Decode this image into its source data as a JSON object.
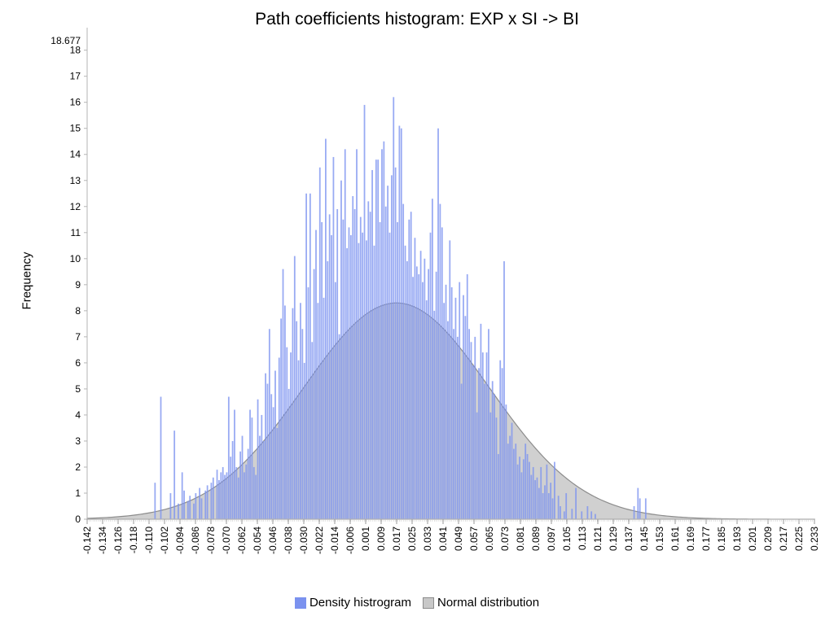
{
  "chart_data": {
    "type": "bar",
    "title": "Path coefficients histogram: EXP x SI -> BI",
    "ylabel": "Frequency",
    "xlabel": "",
    "ylim": [
      0,
      18.677
    ],
    "y_top_label": "18.677",
    "y_ticks": [
      "0",
      "1",
      "2",
      "3",
      "4",
      "5",
      "6",
      "7",
      "8",
      "9",
      "10",
      "11",
      "12",
      "13",
      "14",
      "15",
      "16",
      "17",
      "18"
    ],
    "x_ticks": [
      "-0.142",
      "-0.134",
      "-0.126",
      "-0.118",
      "-0.110",
      "-0.102",
      "-0.094",
      "-0.086",
      "-0.078",
      "-0.070",
      "-0.062",
      "-0.054",
      "-0.046",
      "-0.038",
      "-0.030",
      "-0.022",
      "-0.014",
      "-0.006",
      "0.001",
      "0.009",
      "0.017",
      "0.025",
      "0.033",
      "0.041",
      "0.049",
      "0.057",
      "0.065",
      "0.073",
      "0.081",
      "0.089",
      "0.097",
      "0.105",
      "0.113",
      "0.121",
      "0.129",
      "0.137",
      "0.145",
      "0.153",
      "0.161",
      "0.169",
      "0.177",
      "0.185",
      "0.193",
      "0.201",
      "0.209",
      "0.217",
      "0.225",
      "0.233"
    ],
    "xlim": [
      -0.142,
      0.233
    ],
    "bin_width": 0.001,
    "series": [
      {
        "name": "Density histrogram",
        "type": "bar",
        "color": "#7b92ef",
        "bins": [
          [
            -0.107,
            1.4
          ],
          [
            -0.104,
            4.7
          ],
          [
            -0.099,
            1.0
          ],
          [
            -0.097,
            3.4
          ],
          [
            -0.095,
            0.6
          ],
          [
            -0.093,
            1.8
          ],
          [
            -0.092,
            1.1
          ],
          [
            -0.09,
            0.7
          ],
          [
            -0.089,
            0.9
          ],
          [
            -0.087,
            0.6
          ],
          [
            -0.086,
            1.0
          ],
          [
            -0.084,
            1.2
          ],
          [
            -0.083,
            0.8
          ],
          [
            -0.081,
            1.1
          ],
          [
            -0.08,
            1.3
          ],
          [
            -0.078,
            1.4
          ],
          [
            -0.077,
            1.6
          ],
          [
            -0.075,
            1.9
          ],
          [
            -0.074,
            1.5
          ],
          [
            -0.073,
            1.8
          ],
          [
            -0.072,
            2.0
          ],
          [
            -0.071,
            1.7
          ],
          [
            -0.07,
            1.8
          ],
          [
            -0.069,
            4.7
          ],
          [
            -0.068,
            2.4
          ],
          [
            -0.067,
            3.0
          ],
          [
            -0.066,
            4.2
          ],
          [
            -0.065,
            2.0
          ],
          [
            -0.064,
            1.6
          ],
          [
            -0.063,
            2.6
          ],
          [
            -0.062,
            3.2
          ],
          [
            -0.061,
            1.8
          ],
          [
            -0.06,
            2.1
          ],
          [
            -0.059,
            2.7
          ],
          [
            -0.058,
            4.2
          ],
          [
            -0.057,
            3.9
          ],
          [
            -0.056,
            2.0
          ],
          [
            -0.055,
            1.7
          ],
          [
            -0.054,
            4.6
          ],
          [
            -0.053,
            3.2
          ],
          [
            -0.052,
            4.0
          ],
          [
            -0.051,
            3.0
          ],
          [
            -0.05,
            5.6
          ],
          [
            -0.049,
            5.2
          ],
          [
            -0.048,
            7.3
          ],
          [
            -0.047,
            4.8
          ],
          [
            -0.046,
            4.3
          ],
          [
            -0.045,
            5.7
          ],
          [
            -0.044,
            3.5
          ],
          [
            -0.043,
            6.2
          ],
          [
            -0.042,
            7.7
          ],
          [
            -0.041,
            9.6
          ],
          [
            -0.04,
            8.2
          ],
          [
            -0.039,
            6.6
          ],
          [
            -0.038,
            5.0
          ],
          [
            -0.037,
            6.4
          ],
          [
            -0.036,
            8.1
          ],
          [
            -0.035,
            10.1
          ],
          [
            -0.034,
            7.6
          ],
          [
            -0.033,
            6.1
          ],
          [
            -0.032,
            8.3
          ],
          [
            -0.031,
            7.3
          ],
          [
            -0.03,
            6.0
          ],
          [
            -0.029,
            12.5
          ],
          [
            -0.028,
            8.9
          ],
          [
            -0.027,
            12.5
          ],
          [
            -0.026,
            6.8
          ],
          [
            -0.025,
            9.6
          ],
          [
            -0.024,
            11.1
          ],
          [
            -0.023,
            8.3
          ],
          [
            -0.022,
            13.5
          ],
          [
            -0.021,
            11.4
          ],
          [
            -0.02,
            8.5
          ],
          [
            -0.019,
            14.6
          ],
          [
            -0.018,
            9.9
          ],
          [
            -0.017,
            11.7
          ],
          [
            -0.016,
            10.9
          ],
          [
            -0.015,
            13.9
          ],
          [
            -0.014,
            9.1
          ],
          [
            -0.013,
            11.9
          ],
          [
            -0.012,
            7.1
          ],
          [
            -0.011,
            13.0
          ],
          [
            -0.01,
            11.5
          ],
          [
            -0.009,
            14.2
          ],
          [
            -0.008,
            10.4
          ],
          [
            -0.007,
            11.2
          ],
          [
            -0.006,
            10.9
          ],
          [
            -0.005,
            12.4
          ],
          [
            -0.004,
            11.9
          ],
          [
            -0.003,
            14.2
          ],
          [
            -0.002,
            10.6
          ],
          [
            -0.001,
            11.6
          ],
          [
            0.0,
            11.0
          ],
          [
            0.001,
            15.9
          ],
          [
            0.002,
            10.7
          ],
          [
            0.003,
            12.2
          ],
          [
            0.004,
            11.8
          ],
          [
            0.005,
            13.4
          ],
          [
            0.006,
            10.5
          ],
          [
            0.007,
            13.8
          ],
          [
            0.008,
            13.8
          ],
          [
            0.009,
            11.4
          ],
          [
            0.01,
            14.2
          ],
          [
            0.011,
            14.5
          ],
          [
            0.012,
            12.0
          ],
          [
            0.013,
            12.8
          ],
          [
            0.014,
            11.0
          ],
          [
            0.015,
            13.2
          ],
          [
            0.016,
            16.2
          ],
          [
            0.017,
            13.5
          ],
          [
            0.018,
            11.4
          ],
          [
            0.019,
            15.1
          ],
          [
            0.02,
            15.0
          ],
          [
            0.021,
            12.1
          ],
          [
            0.022,
            10.5
          ],
          [
            0.023,
            9.9
          ],
          [
            0.024,
            11.5
          ],
          [
            0.025,
            11.8
          ],
          [
            0.026,
            9.3
          ],
          [
            0.027,
            10.8
          ],
          [
            0.028,
            9.7
          ],
          [
            0.029,
            9.4
          ],
          [
            0.03,
            10.3
          ],
          [
            0.031,
            9.1
          ],
          [
            0.032,
            10.0
          ],
          [
            0.033,
            8.4
          ],
          [
            0.034,
            9.6
          ],
          [
            0.035,
            11.0
          ],
          [
            0.036,
            12.3
          ],
          [
            0.037,
            8.0
          ],
          [
            0.038,
            9.5
          ],
          [
            0.039,
            15.0
          ],
          [
            0.04,
            12.1
          ],
          [
            0.041,
            11.2
          ],
          [
            0.042,
            8.3
          ],
          [
            0.043,
            9.0
          ],
          [
            0.044,
            7.6
          ],
          [
            0.045,
            10.7
          ],
          [
            0.046,
            8.9
          ],
          [
            0.047,
            7.3
          ],
          [
            0.048,
            8.5
          ],
          [
            0.049,
            7.0
          ],
          [
            0.05,
            9.1
          ],
          [
            0.051,
            5.2
          ],
          [
            0.052,
            8.6
          ],
          [
            0.053,
            7.8
          ],
          [
            0.054,
            9.4
          ],
          [
            0.055,
            7.3
          ],
          [
            0.056,
            6.8
          ],
          [
            0.057,
            5.9
          ],
          [
            0.058,
            7.0
          ],
          [
            0.059,
            4.1
          ],
          [
            0.06,
            5.8
          ],
          [
            0.061,
            7.5
          ],
          [
            0.062,
            6.4
          ],
          [
            0.063,
            5.2
          ],
          [
            0.064,
            6.4
          ],
          [
            0.065,
            7.3
          ],
          [
            0.066,
            4.1
          ],
          [
            0.067,
            5.3
          ],
          [
            0.068,
            4.8
          ],
          [
            0.069,
            3.9
          ],
          [
            0.07,
            2.5
          ],
          [
            0.071,
            6.1
          ],
          [
            0.072,
            5.8
          ],
          [
            0.073,
            9.9
          ],
          [
            0.074,
            4.4
          ],
          [
            0.075,
            2.9
          ],
          [
            0.076,
            3.2
          ],
          [
            0.077,
            3.7
          ],
          [
            0.078,
            2.7
          ],
          [
            0.079,
            2.9
          ],
          [
            0.08,
            2.1
          ],
          [
            0.081,
            2.4
          ],
          [
            0.082,
            1.8
          ],
          [
            0.083,
            2.3
          ],
          [
            0.084,
            2.9
          ],
          [
            0.085,
            2.5
          ],
          [
            0.086,
            2.2
          ],
          [
            0.087,
            1.7
          ],
          [
            0.088,
            2.0
          ],
          [
            0.089,
            1.5
          ],
          [
            0.09,
            1.6
          ],
          [
            0.091,
            1.2
          ],
          [
            0.092,
            2.0
          ],
          [
            0.093,
            1.0
          ],
          [
            0.094,
            1.3
          ],
          [
            0.095,
            2.1
          ],
          [
            0.096,
            1.0
          ],
          [
            0.097,
            1.4
          ],
          [
            0.098,
            0.8
          ],
          [
            0.099,
            2.2
          ],
          [
            0.101,
            0.9
          ],
          [
            0.102,
            0.5
          ],
          [
            0.104,
            0.3
          ],
          [
            0.105,
            1.0
          ],
          [
            0.108,
            0.4
          ],
          [
            0.11,
            1.2
          ],
          [
            0.113,
            0.3
          ],
          [
            0.116,
            0.5
          ],
          [
            0.118,
            0.3
          ],
          [
            0.12,
            0.2
          ],
          [
            0.14,
            0.5
          ],
          [
            0.142,
            1.2
          ],
          [
            0.143,
            0.8
          ],
          [
            0.146,
            0.8
          ]
        ]
      },
      {
        "name": "Normal distribution",
        "type": "area",
        "color": "#8c8c8c",
        "mean": 0.0175,
        "sd": 0.048,
        "peak": 8.3
      }
    ],
    "legend": "bottom-center",
    "grid": false
  }
}
